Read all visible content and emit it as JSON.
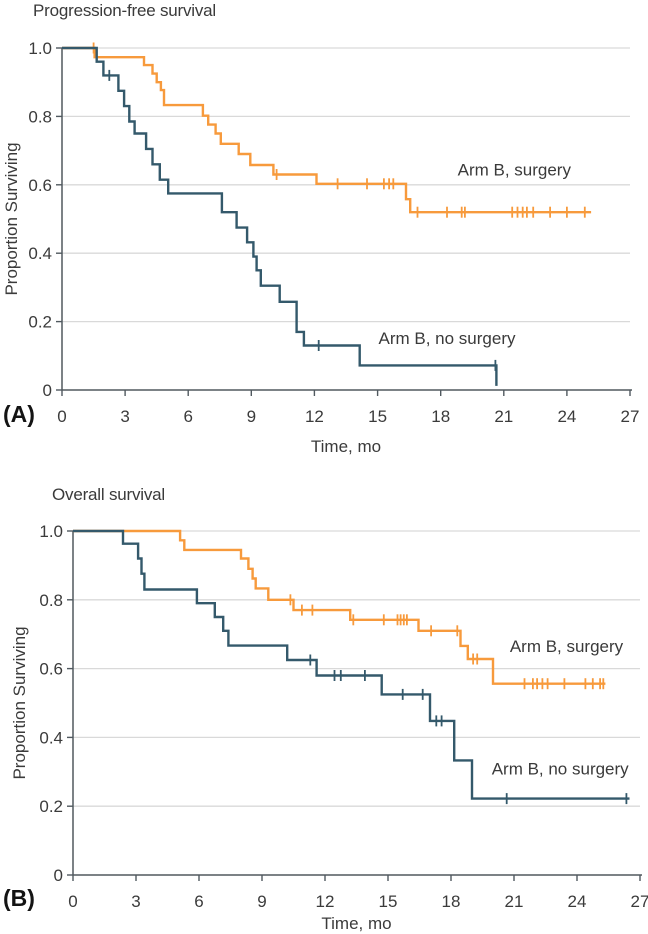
{
  "figure": {
    "panels": [
      {
        "marker": "(A)",
        "title": "Progression-free survival"
      },
      {
        "marker": "(B)",
        "title": "Overall survival"
      }
    ],
    "colors": {
      "surgery": "#F79A3C",
      "no_surgery": "#34596B",
      "grid": "#D9D9D9",
      "axis": "#50595F",
      "text": "#3B3B3B"
    }
  },
  "chart_data": [
    {
      "type": "line",
      "subtype": "kaplan-meier-step",
      "title": "Progression-free survival",
      "xlabel": "Time, mo",
      "ylabel": "Proportion Surviving",
      "xlim": [
        0,
        27
      ],
      "ylim": [
        0,
        1.0
      ],
      "xticks": [
        0,
        3,
        6,
        9,
        12,
        15,
        18,
        21,
        24,
        27
      ],
      "yticks": [
        {
          "v": 0,
          "label": "0"
        },
        {
          "v": 0.2,
          "label": "0.2"
        },
        {
          "v": 0.4,
          "label": "0.4"
        },
        {
          "v": 0.6,
          "label": "0.6"
        },
        {
          "v": 0.8,
          "label": "0.8"
        },
        {
          "v": 1.0,
          "label": "1.0"
        }
      ],
      "grid": true,
      "legend_position": "labels-on-plot",
      "series": [
        {
          "name": "Arm B, surgery",
          "color": "#F79A3C",
          "start": [
            0,
            1.0
          ],
          "steps": [
            [
              1.55,
              0.973
            ],
            [
              3.9,
              0.95
            ],
            [
              4.3,
              0.925
            ],
            [
              4.5,
              0.9
            ],
            [
              4.7,
              0.877
            ],
            [
              4.85,
              0.833
            ],
            [
              6.7,
              0.802
            ],
            [
              6.95,
              0.776
            ],
            [
              7.3,
              0.75
            ],
            [
              7.55,
              0.72
            ],
            [
              8.4,
              0.69
            ],
            [
              8.95,
              0.658
            ],
            [
              10.05,
              0.63
            ],
            [
              12.1,
              0.603
            ],
            [
              16.35,
              0.558
            ],
            [
              16.55,
              0.52
            ]
          ],
          "end_x": 25.15,
          "censors": [
            [
              1.5,
              1.0
            ],
            [
              10.2,
              0.63
            ],
            [
              13.1,
              0.603
            ],
            [
              14.5,
              0.603
            ],
            [
              15.3,
              0.603
            ],
            [
              15.55,
              0.603
            ],
            [
              15.75,
              0.603
            ],
            [
              16.9,
              0.52
            ],
            [
              18.3,
              0.52
            ],
            [
              19.0,
              0.52
            ],
            [
              19.15,
              0.52
            ],
            [
              21.4,
              0.52
            ],
            [
              21.65,
              0.52
            ],
            [
              21.9,
              0.52
            ],
            [
              22.1,
              0.52
            ],
            [
              22.4,
              0.52
            ],
            [
              23.2,
              0.52
            ],
            [
              24.0,
              0.52
            ],
            [
              24.85,
              0.52
            ]
          ],
          "label": {
            "text": "Arm B, surgery",
            "x": 21.5,
            "y": 0.627
          }
        },
        {
          "name": "Arm B, no surgery",
          "color": "#34596B",
          "start": [
            0,
            1.0
          ],
          "steps": [
            [
              1.65,
              0.96
            ],
            [
              1.97,
              0.92
            ],
            [
              2.68,
              0.875
            ],
            [
              2.95,
              0.83
            ],
            [
              3.2,
              0.785
            ],
            [
              3.45,
              0.75
            ],
            [
              4.0,
              0.705
            ],
            [
              4.3,
              0.66
            ],
            [
              4.65,
              0.615
            ],
            [
              5.05,
              0.575
            ],
            [
              7.6,
              0.52
            ],
            [
              8.3,
              0.475
            ],
            [
              8.8,
              0.432
            ],
            [
              9.1,
              0.39
            ],
            [
              9.25,
              0.35
            ],
            [
              9.45,
              0.305
            ],
            [
              10.35,
              0.258
            ],
            [
              11.15,
              0.17
            ],
            [
              11.5,
              0.13
            ],
            [
              14.15,
              0.072
            ],
            [
              20.65,
              0.012
            ]
          ],
          "end_x": 20.65,
          "censors": [
            [
              2.25,
              0.92
            ],
            [
              12.2,
              0.13
            ],
            [
              20.6,
              0.072
            ]
          ],
          "label": {
            "text": "Arm B, no surgery",
            "x": 18.3,
            "y": 0.135
          }
        }
      ]
    },
    {
      "type": "line",
      "subtype": "kaplan-meier-step",
      "title": "Overall survival",
      "xlabel": "Time, mo",
      "ylabel": "Proportion Surviving",
      "xlim": [
        0,
        27
      ],
      "ylim": [
        0,
        1.0
      ],
      "xticks": [
        0,
        3,
        6,
        9,
        12,
        15,
        18,
        21,
        24,
        27
      ],
      "yticks": [
        {
          "v": 0,
          "label": "0"
        },
        {
          "v": 0.2,
          "label": "0.2"
        },
        {
          "v": 0.4,
          "label": "0.4"
        },
        {
          "v": 0.6,
          "label": "0.6"
        },
        {
          "v": 0.8,
          "label": "0.8"
        },
        {
          "v": 1.0,
          "label": "1.0"
        }
      ],
      "grid": true,
      "legend_position": "labels-on-plot",
      "series": [
        {
          "name": "Arm B, surgery",
          "color": "#F79A3C",
          "start": [
            0,
            1.0
          ],
          "steps": [
            [
              5.1,
              0.973
            ],
            [
              5.3,
              0.945
            ],
            [
              8.0,
              0.92
            ],
            [
              8.35,
              0.89
            ],
            [
              8.55,
              0.862
            ],
            [
              8.7,
              0.833
            ],
            [
              9.3,
              0.8
            ],
            [
              10.5,
              0.77
            ],
            [
              13.2,
              0.742
            ],
            [
              16.45,
              0.71
            ],
            [
              18.45,
              0.666
            ],
            [
              18.8,
              0.628
            ],
            [
              20.0,
              0.556
            ]
          ],
          "end_x": 25.35,
          "censors": [
            [
              10.35,
              0.8
            ],
            [
              10.9,
              0.77
            ],
            [
              11.4,
              0.77
            ],
            [
              13.35,
              0.742
            ],
            [
              14.8,
              0.742
            ],
            [
              15.45,
              0.742
            ],
            [
              15.6,
              0.742
            ],
            [
              15.75,
              0.742
            ],
            [
              15.9,
              0.742
            ],
            [
              17.05,
              0.71
            ],
            [
              18.3,
              0.71
            ],
            [
              19.05,
              0.628
            ],
            [
              19.25,
              0.628
            ],
            [
              21.5,
              0.556
            ],
            [
              21.9,
              0.556
            ],
            [
              22.1,
              0.556
            ],
            [
              22.35,
              0.556
            ],
            [
              22.6,
              0.556
            ],
            [
              23.4,
              0.556
            ],
            [
              24.4,
              0.556
            ],
            [
              24.75,
              0.556
            ],
            [
              25.1,
              0.556
            ],
            [
              25.25,
              0.556
            ]
          ],
          "label": {
            "text": "Arm B, surgery",
            "x": 23.5,
            "y": 0.648
          }
        },
        {
          "name": "Arm B, no surgery",
          "color": "#34596B",
          "start": [
            0,
            1.0
          ],
          "steps": [
            [
              2.38,
              0.963
            ],
            [
              3.1,
              0.92
            ],
            [
              3.26,
              0.876
            ],
            [
              3.4,
              0.83
            ],
            [
              5.9,
              0.79
            ],
            [
              6.75,
              0.75
            ],
            [
              7.15,
              0.71
            ],
            [
              7.4,
              0.667
            ],
            [
              10.2,
              0.625
            ],
            [
              11.6,
              0.58
            ],
            [
              14.7,
              0.525
            ],
            [
              17.0,
              0.448
            ],
            [
              18.15,
              0.333
            ],
            [
              19.0,
              0.222
            ]
          ],
          "end_x": 26.5,
          "censors": [
            [
              11.3,
              0.625
            ],
            [
              12.45,
              0.58
            ],
            [
              12.75,
              0.58
            ],
            [
              13.9,
              0.58
            ],
            [
              15.7,
              0.525
            ],
            [
              16.65,
              0.525
            ],
            [
              17.3,
              0.448
            ],
            [
              17.55,
              0.448
            ],
            [
              20.65,
              0.222
            ],
            [
              26.35,
              0.222
            ]
          ],
          "label": {
            "text": "Arm B, no surgery",
            "x": 23.2,
            "y": 0.292
          }
        }
      ]
    }
  ]
}
